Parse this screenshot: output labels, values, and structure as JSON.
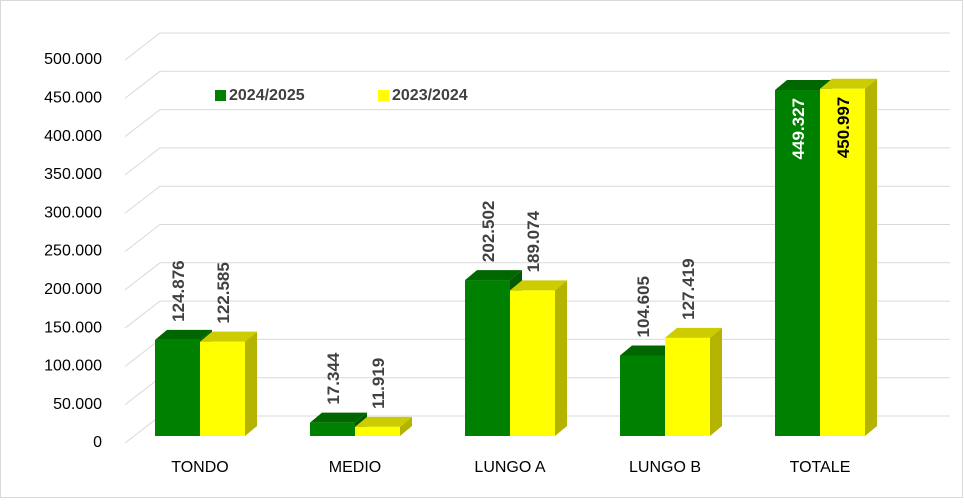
{
  "chart_data": {
    "type": "bar3d",
    "categories": [
      "TONDO",
      "MEDIO",
      "LUNGO A",
      "LUNGO B",
      "TOTALE"
    ],
    "series": [
      {
        "name": "2024/2025",
        "color": "#008000",
        "values": [
          124876,
          17344,
          202502,
          104605,
          449327
        ],
        "value_labels": [
          "124.876",
          "17.344",
          "202.502",
          "104.605",
          "449.327"
        ]
      },
      {
        "name": "2023/2024",
        "color": "#ffff00",
        "values": [
          122585,
          11919,
          189074,
          127419,
          450997
        ],
        "value_labels": [
          "122.585",
          "11.919",
          "189.074",
          "127.419",
          "450.997"
        ]
      }
    ],
    "ylim": [
      0,
      500000
    ],
    "yticks": [
      0,
      {
        "value": 50000,
        "label": "50.000"
      },
      {
        "value": 100000,
        "label": "100.000"
      },
      {
        "value": 150000,
        "label": "150.000"
      },
      {
        "value": 200000,
        "label": "200.000"
      },
      {
        "value": 250000,
        "label": "250.000"
      },
      {
        "value": 300000,
        "label": "300.000"
      },
      {
        "value": 350000,
        "label": "350.000"
      },
      {
        "value": 400000,
        "label": "400.000"
      },
      {
        "value": 450000,
        "label": "450.000"
      },
      {
        "value": 500000,
        "label": "500.000"
      }
    ],
    "grid": true,
    "legend": "top-left"
  }
}
